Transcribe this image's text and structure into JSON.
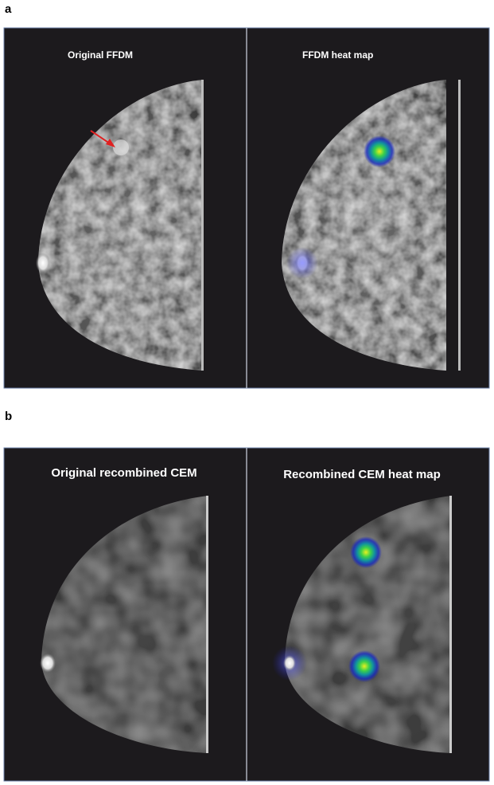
{
  "panels": [
    {
      "label": "a",
      "images": [
        {
          "caption": "Original FFDM"
        },
        {
          "caption": "FFDM heat map"
        }
      ]
    },
    {
      "label": "b",
      "images": [
        {
          "caption": "Original recombined CEM"
        },
        {
          "caption": "Recombined CEM heat map"
        }
      ]
    }
  ]
}
